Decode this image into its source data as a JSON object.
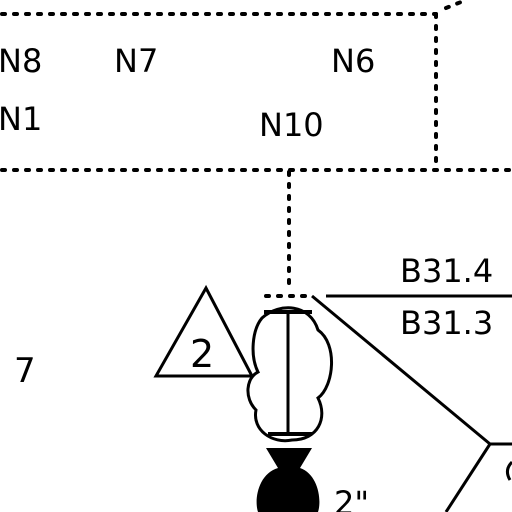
{
  "colors": {
    "ink": "#000000",
    "paper": "#ffffff"
  },
  "labels": {
    "n8": "N8",
    "n7": "N7",
    "n6": "N6",
    "n1": "N1",
    "n10": "N10",
    "b31_4": "B31.4",
    "b31_3": "B31.3",
    "left_number": "7",
    "revision_triangle": "2",
    "size_note": "2\""
  }
}
